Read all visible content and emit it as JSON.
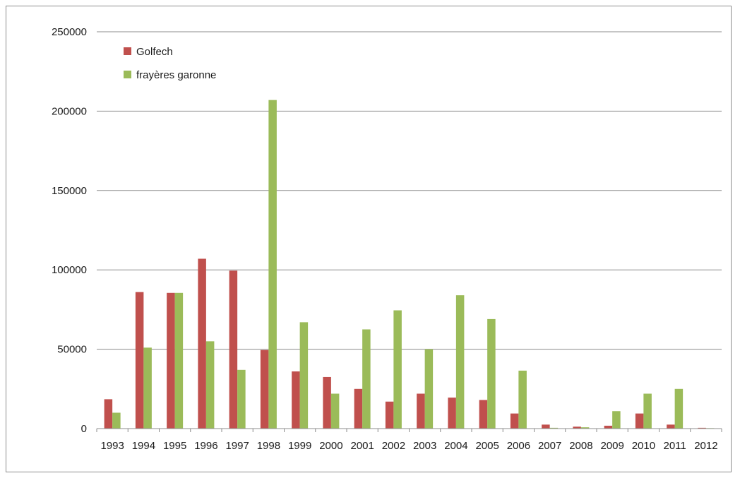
{
  "chart_data": {
    "type": "bar",
    "title": "",
    "xlabel": "",
    "ylabel": "",
    "ylim": [
      0,
      250000
    ],
    "yticks": [
      0,
      50000,
      100000,
      150000,
      200000,
      250000
    ],
    "grid": true,
    "legend_position": "top-left",
    "categories": [
      "1993",
      "1994",
      "1995",
      "1996",
      "1997",
      "1998",
      "1999",
      "2000",
      "2001",
      "2002",
      "2003",
      "2004",
      "2005",
      "2006",
      "2007",
      "2008",
      "2009",
      "2010",
      "2011",
      "2012"
    ],
    "series": [
      {
        "name": "Golfech",
        "color": "#c0504d",
        "values": [
          18500,
          86000,
          85500,
          107000,
          99500,
          49500,
          36000,
          32500,
          25000,
          17000,
          22000,
          19500,
          18000,
          9500,
          2500,
          1200,
          1800,
          9500,
          2500,
          500
        ]
      },
      {
        "name": "frayères garonne",
        "color": "#9bbb59",
        "values": [
          10000,
          51000,
          85500,
          55000,
          37000,
          207000,
          67000,
          22000,
          62500,
          74500,
          50000,
          84000,
          69000,
          36500,
          500,
          800,
          11000,
          22000,
          25000,
          300
        ]
      }
    ]
  }
}
